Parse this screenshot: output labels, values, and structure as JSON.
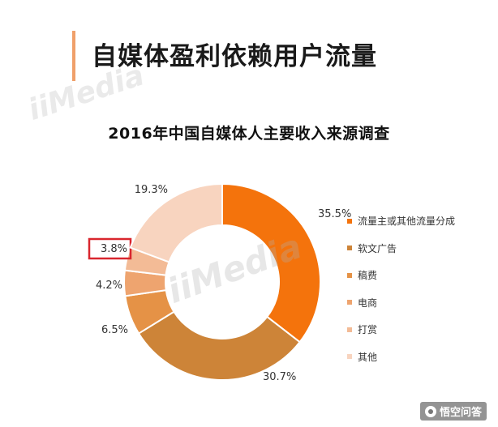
{
  "page": {
    "headline": "自媒体盈利依赖用户流量",
    "watermark": "iiMedia",
    "footer_brand": "悟空问答"
  },
  "colors": {
    "accent_bar": "#f0a06a",
    "highlight_box": "#d9262e"
  },
  "chart_data": {
    "type": "pie",
    "title": "2016年中国自媒体人主要收入来源调查",
    "donut": true,
    "start": "12 o'clock",
    "direction": "clockwise",
    "legend_position": "right",
    "unit": "%",
    "slices": [
      {
        "label": "流量主或其他流量分成",
        "value": 35.5,
        "value_label": "35.5%",
        "color": "#f4730c"
      },
      {
        "label": "软文广告",
        "value": 30.7,
        "value_label": "30.7%",
        "color": "#cd8438"
      },
      {
        "label": "稿费",
        "value": 6.5,
        "value_label": "6.5%",
        "color": "#e59246"
      },
      {
        "label": "电商",
        "value": 4.2,
        "value_label": "4.2%",
        "color": "#eea46f"
      },
      {
        "label": "打赏",
        "value": 3.8,
        "value_label": "3.8%",
        "color": "#f3bb96",
        "highlighted": true
      },
      {
        "label": "其他",
        "value": 19.3,
        "value_label": "19.3%",
        "color": "#f8d4bf"
      }
    ]
  }
}
